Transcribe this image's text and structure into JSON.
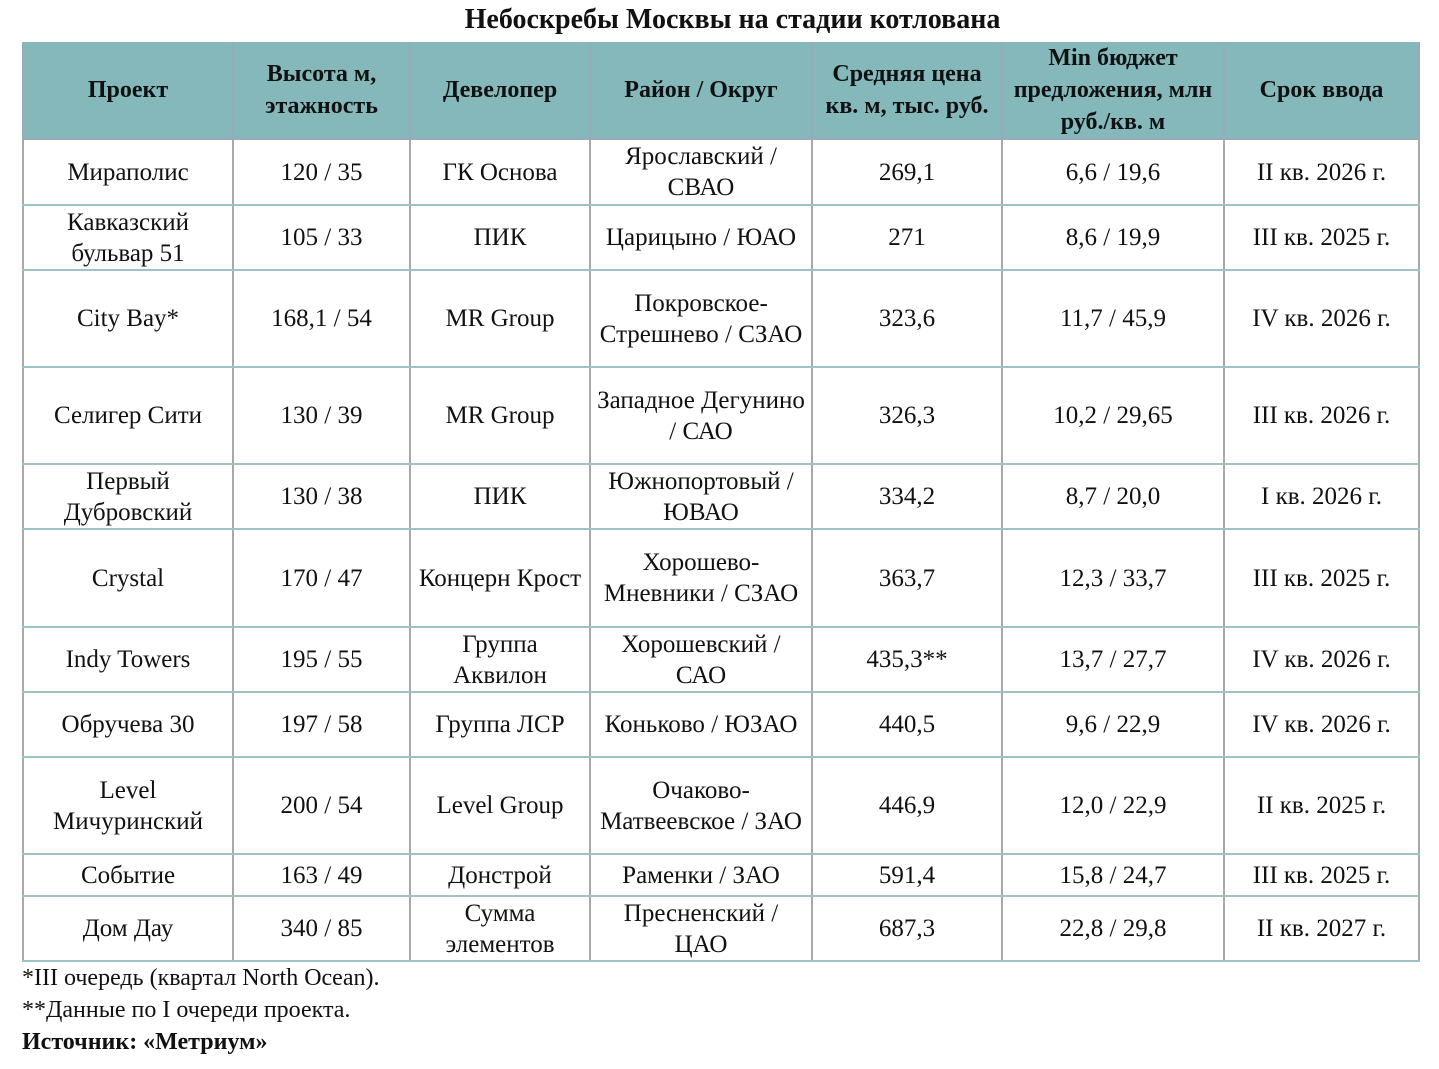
{
  "title": "Небоскребы Москвы на стадии котлована",
  "header_color": "#84b8bb",
  "columns": [
    "Проект",
    "Высота м, этажность",
    "Девелопер",
    "Район / Округ",
    "Средняя цена кв. м, тыс. руб.",
    "Min бюджет предложения, млн руб./кв. м",
    "Срок ввода"
  ],
  "rows": [
    [
      "Мираполис",
      "120 / 35",
      "ГК Основа",
      "Ярославский / СВАО",
      "269,1",
      "6,6 / 19,6",
      "II кв. 2026 г."
    ],
    [
      "Кавказский бульвар 51",
      "105 / 33",
      "ПИК",
      "Царицыно / ЮАО",
      "271",
      "8,6 / 19,9",
      "III кв. 2025 г."
    ],
    [
      "City Bay*",
      "168,1 / 54",
      "MR Group",
      "Покровское-Стрешнево / СЗАО",
      "323,6",
      "11,7 / 45,9",
      "IV кв. 2026 г."
    ],
    [
      "Селигер Сити",
      "130 / 39",
      "MR Group",
      "Западное Дегунино / САО",
      "326,3",
      "10,2 / 29,65",
      "III кв. 2026 г."
    ],
    [
      "Первый Дубровский",
      "130 / 38",
      "ПИК",
      "Южнопортовый / ЮВАО",
      "334,2",
      "8,7 / 20,0",
      "I кв. 2026 г."
    ],
    [
      "Crystal",
      "170 / 47",
      "Концерн Крост",
      "Хорошево-Мневники / СЗАО",
      "363,7",
      "12,3 / 33,7",
      "III кв. 2025 г."
    ],
    [
      "Indy Towers",
      "195 / 55",
      "Группа Аквилон",
      "Хорошевский / САО",
      "435,3**",
      "13,7 / 27,7",
      "IV кв. 2026 г."
    ],
    [
      "Обручева 30",
      "197 / 58",
      "Группа ЛСР",
      "Коньково / ЮЗАО",
      "440,5",
      "9,6 / 22,9",
      "IV кв. 2026 г."
    ],
    [
      "Level Мичуринский",
      "200 / 54",
      "Level Group",
      "Очаково-Матвеевское / ЗАО",
      "446,9",
      "12,0 / 22,9",
      "II кв. 2025 г."
    ],
    [
      "Событие",
      "163 / 49",
      "Донстрой",
      "Раменки / ЗАО",
      "591,4",
      "15,8 / 24,7",
      "III кв. 2025 г."
    ],
    [
      "Дом Дау",
      "340 / 85",
      "Сумма элементов",
      "Пресненский / ЦАО",
      "687,3",
      "22,8 / 29,8",
      "II кв. 2027 г."
    ]
  ],
  "notes": [
    "*III очередь (квартал North Ocean).",
    "**Данные по I очереди проекта."
  ],
  "source": "Источник: «Метриум»"
}
